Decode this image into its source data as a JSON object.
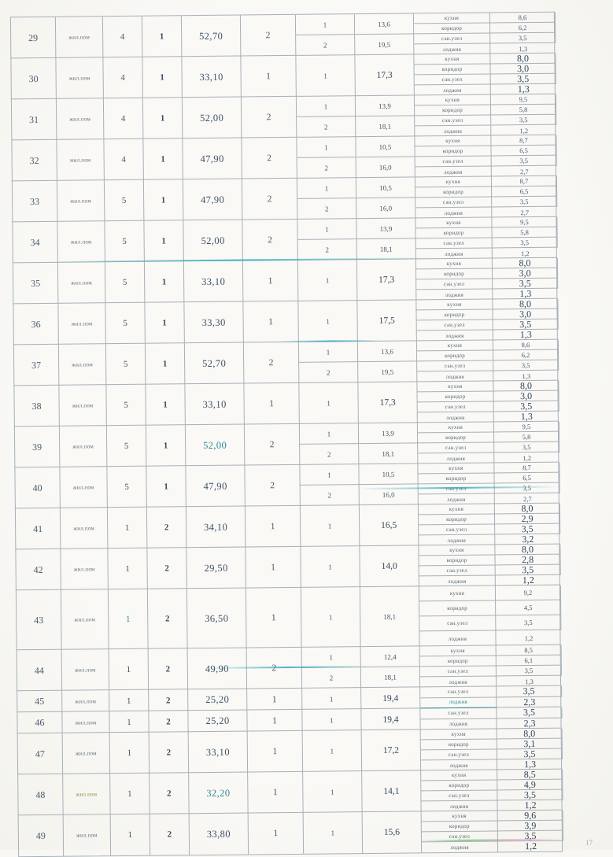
{
  "page_number": "17",
  "colors": {
    "ink": "#44566a",
    "ink_dark": "#32455c",
    "accent_teal": "#2d8a99",
    "highlight_olive": "#8a8f3a",
    "border": "#a6b0b9",
    "paper": "#f8f7f3"
  },
  "rows": [
    {
      "num": "29",
      "type": "жил.пом",
      "floor": "4",
      "entrance": "1",
      "total_area": "52,70",
      "room_count": "2",
      "living_rooms": [
        {
          "no": "1",
          "area": "13,6"
        },
        {
          "no": "2",
          "area": "19,5"
        }
      ],
      "aux_rooms": [
        {
          "name": "кухня",
          "area": "8,6"
        },
        {
          "name": "коридор",
          "area": "6,2"
        },
        {
          "name": "сан.узел",
          "area": "3,5"
        },
        {
          "name": "лоджия",
          "area": "1,3"
        }
      ]
    },
    {
      "num": "30",
      "type": "жил.пом",
      "floor": "4",
      "entrance": "1",
      "total_area": "33,10",
      "room_count": "1",
      "living_rooms": [
        {
          "no": "1",
          "area": "17,3"
        }
      ],
      "aux_rooms": [
        {
          "name": "кухня",
          "area": "8,0"
        },
        {
          "name": "коридор",
          "area": "3,0"
        },
        {
          "name": "сан.узел",
          "area": "3,5"
        },
        {
          "name": "лоджия",
          "area": "1,3"
        }
      ]
    },
    {
      "num": "31",
      "type": "жил.пом",
      "floor": "4",
      "entrance": "1",
      "total_area": "52,00",
      "room_count": "2",
      "living_rooms": [
        {
          "no": "1",
          "area": "13,9"
        },
        {
          "no": "2",
          "area": "18,1"
        }
      ],
      "aux_rooms": [
        {
          "name": "кухня",
          "area": "9,5"
        },
        {
          "name": "коридор",
          "area": "5,8"
        },
        {
          "name": "сан.узел",
          "area": "3,5"
        },
        {
          "name": "лоджия",
          "area": "1,2"
        }
      ]
    },
    {
      "num": "32",
      "type": "жил.пом",
      "floor": "4",
      "entrance": "1",
      "total_area": "47,90",
      "room_count": "2",
      "living_rooms": [
        {
          "no": "1",
          "area": "10,5"
        },
        {
          "no": "2",
          "area": "16,0"
        }
      ],
      "aux_rooms": [
        {
          "name": "кухня",
          "area": "8,7"
        },
        {
          "name": "коридор",
          "area": "6,5"
        },
        {
          "name": "сан.узел",
          "area": "3,5"
        },
        {
          "name": "лоджия",
          "area": "2,7"
        }
      ]
    },
    {
      "num": "33",
      "type": "жил.пом",
      "floor": "5",
      "entrance": "1",
      "total_area": "47,90",
      "room_count": "2",
      "living_rooms": [
        {
          "no": "1",
          "area": "10,5"
        },
        {
          "no": "2",
          "area": "16,0"
        }
      ],
      "aux_rooms": [
        {
          "name": "кухня",
          "area": "8,7"
        },
        {
          "name": "коридор",
          "area": "6,5"
        },
        {
          "name": "сан.узел",
          "area": "3,5"
        },
        {
          "name": "лоджия",
          "area": "2,7"
        }
      ]
    },
    {
      "num": "34",
      "type": "жил.пом",
      "floor": "5",
      "entrance": "1",
      "total_area": "52,00",
      "room_count": "2",
      "living_rooms": [
        {
          "no": "1",
          "area": "13,9"
        },
        {
          "no": "2",
          "area": "18,1"
        }
      ],
      "aux_rooms": [
        {
          "name": "кухня",
          "area": "9,5"
        },
        {
          "name": "коридор",
          "area": "5,8"
        },
        {
          "name": "сан.узел",
          "area": "3,5"
        },
        {
          "name": "лоджия",
          "area": "1,2"
        }
      ]
    },
    {
      "num": "35",
      "type": "жил.пом",
      "floor": "5",
      "entrance": "1",
      "total_area": "33,10",
      "room_count": "1",
      "living_rooms": [
        {
          "no": "1",
          "area": "17,3"
        }
      ],
      "aux_rooms": [
        {
          "name": "кухня",
          "area": "8,0"
        },
        {
          "name": "коридор",
          "area": "3,0"
        },
        {
          "name": "сан.узел",
          "area": "3,5"
        },
        {
          "name": "лоджия",
          "area": "1,3"
        }
      ]
    },
    {
      "num": "36",
      "type": "жил.пом",
      "floor": "5",
      "entrance": "1",
      "total_area": "33,30",
      "room_count": "1",
      "living_rooms": [
        {
          "no": "1",
          "area": "17,5"
        }
      ],
      "aux_rooms": [
        {
          "name": "кухня",
          "area": "8,0"
        },
        {
          "name": "коридор",
          "area": "3,0"
        },
        {
          "name": "сан.узел",
          "area": "3,5"
        },
        {
          "name": "лоджия",
          "area": "1,3"
        }
      ]
    },
    {
      "num": "37",
      "type": "жил.пом",
      "floor": "5",
      "entrance": "1",
      "total_area": "52,70",
      "room_count": "2",
      "living_rooms": [
        {
          "no": "1",
          "area": "13,6"
        },
        {
          "no": "2",
          "area": "19,5"
        }
      ],
      "aux_rooms": [
        {
          "name": "кухня",
          "area": "8,6"
        },
        {
          "name": "коридор",
          "area": "6,2"
        },
        {
          "name": "сан.узел",
          "area": "3,5"
        },
        {
          "name": "лоджия",
          "area": "1,3"
        }
      ]
    },
    {
      "num": "38",
      "type": "жил.пом",
      "floor": "5",
      "entrance": "1",
      "total_area": "33,10",
      "room_count": "1",
      "living_rooms": [
        {
          "no": "1",
          "area": "17,3"
        }
      ],
      "aux_rooms": [
        {
          "name": "кухня",
          "area": "8,0"
        },
        {
          "name": "коридор",
          "area": "3,0"
        },
        {
          "name": "сан.узел",
          "area": "3,5"
        },
        {
          "name": "лоджия",
          "area": "1,3"
        }
      ]
    },
    {
      "num": "39",
      "type": "жил.пом",
      "floor": "5",
      "entrance": "1",
      "total_area": "52,00",
      "room_count": "2",
      "living_rooms": [
        {
          "no": "1",
          "area": "13,9"
        },
        {
          "no": "2",
          "area": "18,1"
        }
      ],
      "aux_rooms": [
        {
          "name": "кухня",
          "area": "9,5"
        },
        {
          "name": "коридор",
          "area": "5,8"
        },
        {
          "name": "сан.узел",
          "area": "3,5"
        },
        {
          "name": "лоджия",
          "area": "1,2"
        }
      ]
    },
    {
      "num": "40",
      "type": "жил.пом",
      "floor": "5",
      "entrance": "1",
      "total_area": "47,90",
      "room_count": "2",
      "living_rooms": [
        {
          "no": "1",
          "area": "10,5"
        },
        {
          "no": "2",
          "area": "16,0"
        }
      ],
      "aux_rooms": [
        {
          "name": "кухня",
          "area": "8,7"
        },
        {
          "name": "коридор",
          "area": "6,5"
        },
        {
          "name": "сан.узел",
          "area": "3,5"
        },
        {
          "name": "лоджия",
          "area": "2,7"
        }
      ]
    },
    {
      "num": "41",
      "type": "жил.пом",
      "floor": "1",
      "entrance": "2",
      "total_area": "34,10",
      "room_count": "1",
      "living_rooms": [
        {
          "no": "1",
          "area": "16,5"
        }
      ],
      "aux_rooms": [
        {
          "name": "кухня",
          "area": "8,0"
        },
        {
          "name": "коридор",
          "area": "2,9"
        },
        {
          "name": "сан.узел",
          "area": "3,5"
        },
        {
          "name": "лоджия",
          "area": "3,2"
        }
      ]
    },
    {
      "num": "42",
      "type": "жил.пом",
      "floor": "1",
      "entrance": "2",
      "total_area": "29,50",
      "room_count": "1",
      "living_rooms": [
        {
          "no": "1",
          "area": "14,0"
        }
      ],
      "aux_rooms": [
        {
          "name": "кухня",
          "area": "8,0"
        },
        {
          "name": "коридор",
          "area": "2,8"
        },
        {
          "name": "сан.узел",
          "area": "3,5"
        },
        {
          "name": "лоджия",
          "area": "1,2"
        }
      ]
    },
    {
      "num": "43",
      "type": "жил.пом",
      "floor": "1",
      "entrance": "2",
      "total_area": "36,50",
      "room_count": "1",
      "living_rooms": [
        {
          "no": "1",
          "area": "18,1"
        }
      ],
      "aux_rooms": [
        {
          "name": "кухня",
          "area": "9,2"
        },
        {
          "name": "коридор",
          "area": "4,5"
        },
        {
          "name": "сан.узел",
          "area": "3,5"
        },
        {
          "name": "лоджия",
          "area": "1,2"
        }
      ]
    },
    {
      "num": "44",
      "type": "жил.пом",
      "floor": "1",
      "entrance": "2",
      "total_area": "49,90",
      "room_count": "2",
      "living_rooms": [
        {
          "no": "1",
          "area": "12,4"
        },
        {
          "no": "2",
          "area": "18,1"
        }
      ],
      "aux_rooms": [
        {
          "name": "кухня",
          "area": "8,5"
        },
        {
          "name": "коридор",
          "area": "6,1"
        },
        {
          "name": "сан.узел",
          "area": "3,5"
        },
        {
          "name": "лоджия",
          "area": "1,3"
        }
      ]
    },
    {
      "num": "45",
      "type": "жил.пом",
      "floor": "1",
      "entrance": "2",
      "total_area": "25,20",
      "room_count": "1",
      "living_rooms": [
        {
          "no": "1",
          "area": "19,4"
        }
      ],
      "aux_rooms": [
        {
          "name": "сан.узел",
          "area": "3,5"
        },
        {
          "name": "лоджия",
          "area": "2,3"
        }
      ]
    },
    {
      "num": "46",
      "type": "жил.пом",
      "floor": "1",
      "entrance": "2",
      "total_area": "25,20",
      "room_count": "1",
      "living_rooms": [
        {
          "no": "1",
          "area": "19,4"
        }
      ],
      "aux_rooms": [
        {
          "name": "сан.узел",
          "area": "3,5"
        },
        {
          "name": "лоджия",
          "area": "2,3"
        }
      ]
    },
    {
      "num": "47",
      "type": "жил.пом",
      "floor": "1",
      "entrance": "2",
      "total_area": "33,10",
      "room_count": "1",
      "living_rooms": [
        {
          "no": "1",
          "area": "17,2"
        }
      ],
      "aux_rooms": [
        {
          "name": "кухня",
          "area": "8,0"
        },
        {
          "name": "коридор",
          "area": "3,1"
        },
        {
          "name": "сан.узел",
          "area": "3,5"
        },
        {
          "name": "лоджия",
          "area": "1,3"
        }
      ]
    },
    {
      "num": "48",
      "type": "жил.пом",
      "floor": "1",
      "entrance": "2",
      "total_area": "32,20",
      "room_count": "1",
      "living_rooms": [
        {
          "no": "1",
          "area": "14,1"
        }
      ],
      "aux_rooms": [
        {
          "name": "кухня",
          "area": "8,5"
        },
        {
          "name": "коридор",
          "area": "4,9"
        },
        {
          "name": "сан.узел",
          "area": "3,5"
        },
        {
          "name": "лоджия",
          "area": "1,2"
        }
      ]
    },
    {
      "num": "49",
      "type": "жил.пом",
      "floor": "1",
      "entrance": "2",
      "total_area": "33,80",
      "room_count": "1",
      "living_rooms": [
        {
          "no": "1",
          "area": "15,6"
        }
      ],
      "aux_rooms": [
        {
          "name": "кухня",
          "area": "9,6"
        },
        {
          "name": "коридор",
          "area": "3,9"
        },
        {
          "name": "сан.узел",
          "area": "3,5"
        },
        {
          "name": "лоджия",
          "area": "1,2"
        }
      ]
    }
  ]
}
